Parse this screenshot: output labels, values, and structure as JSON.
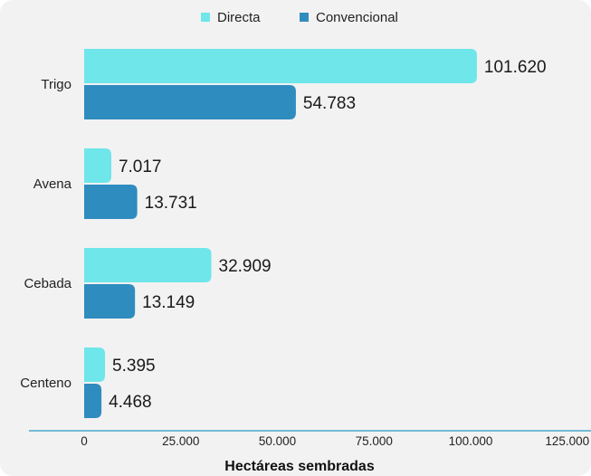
{
  "chart_data": {
    "type": "bar",
    "orientation": "horizontal",
    "categories": [
      "Trigo",
      "Avena",
      "Cebada",
      "Centeno"
    ],
    "series": [
      {
        "name": "Directa",
        "values": [
          101620,
          7017,
          32909,
          5395
        ],
        "color": "#6ee6ea"
      },
      {
        "name": "Convencional",
        "values": [
          54783,
          13731,
          13149,
          4468
        ],
        "color": "#2f8cbf"
      }
    ],
    "data_labels": [
      [
        "101.620",
        "7.017",
        "32.909",
        "5.395"
      ],
      [
        "54.783",
        "13.731",
        "13.149",
        "4.468"
      ]
    ],
    "xlabel": "Hectáreas sembradas",
    "xlim": [
      0,
      125000
    ],
    "x_ticks": [
      0,
      25000,
      50000,
      75000,
      100000,
      125000
    ],
    "x_tick_labels": [
      "0",
      "25.000",
      "50.000",
      "75.000",
      "100.000",
      "125.000"
    ],
    "legend_position": "top-center",
    "grid": false,
    "axis_color": "#4aa8c9"
  }
}
